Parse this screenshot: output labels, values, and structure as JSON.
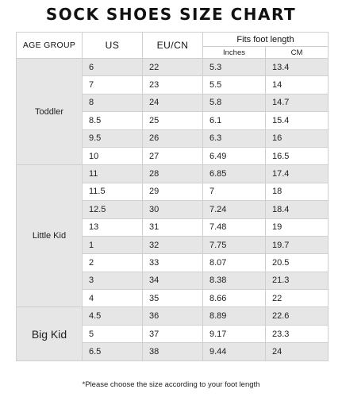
{
  "title": "SOCK SHOES SIZE CHART",
  "headers": {
    "age_group": "AGE GROUP",
    "us": "US",
    "eu_cn": "EU/CN",
    "fits": "Fits foot length",
    "inches": "Inches",
    "cm": "CM"
  },
  "groups": [
    {
      "name": "Toddler",
      "rows": [
        {
          "us": "6",
          "eu": "22",
          "inches": "5.3",
          "cm": "13.4"
        },
        {
          "us": "7",
          "eu": "23",
          "inches": "5.5",
          "cm": "14"
        },
        {
          "us": "8",
          "eu": "24",
          "inches": "5.8",
          "cm": "14.7"
        },
        {
          "us": "8.5",
          "eu": "25",
          "inches": "6.1",
          "cm": "15.4"
        },
        {
          "us": "9.5",
          "eu": "26",
          "inches": "6.3",
          "cm": "16"
        },
        {
          "us": "10",
          "eu": "27",
          "inches": "6.49",
          "cm": "16.5"
        }
      ]
    },
    {
      "name": "Little Kid",
      "rows": [
        {
          "us": "11",
          "eu": "28",
          "inches": "6.85",
          "cm": "17.4"
        },
        {
          "us": "11.5",
          "eu": "29",
          "inches": "7",
          "cm": "18"
        },
        {
          "us": "12.5",
          "eu": "30",
          "inches": "7.24",
          "cm": "18.4"
        },
        {
          "us": "13",
          "eu": "31",
          "inches": "7.48",
          "cm": "19"
        },
        {
          "us": "1",
          "eu": "32",
          "inches": "7.75",
          "cm": "19.7"
        },
        {
          "us": "2",
          "eu": "33",
          "inches": "8.07",
          "cm": "20.5"
        },
        {
          "us": "3",
          "eu": "34",
          "inches": "8.38",
          "cm": "21.3"
        },
        {
          "us": "4",
          "eu": "35",
          "inches": "8.66",
          "cm": "22"
        }
      ]
    },
    {
      "name": "Big Kid",
      "rows": [
        {
          "us": "4.5",
          "eu": "36",
          "inches": "8.89",
          "cm": "22.6"
        },
        {
          "us": "5",
          "eu": "37",
          "inches": "9.17",
          "cm": "23.3"
        },
        {
          "us": "6.5",
          "eu": "38",
          "inches": "9.44",
          "cm": "24"
        }
      ]
    }
  ],
  "note": "*Please choose the size according to your foot length"
}
